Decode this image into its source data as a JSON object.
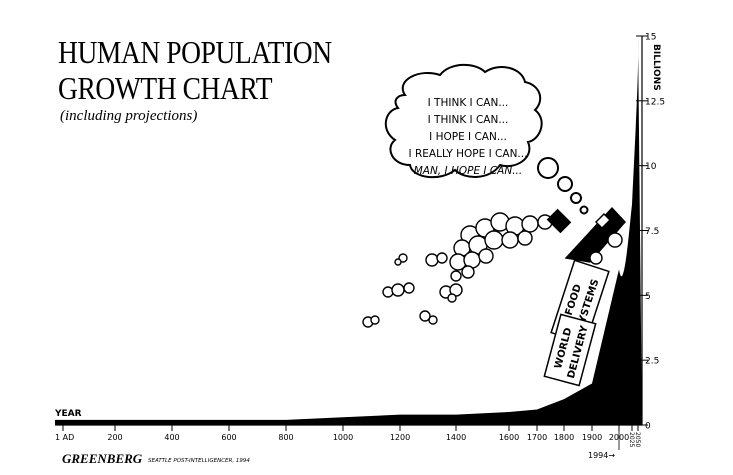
{
  "title_lines": [
    "HUMAN POPULATION",
    "GROWTH CHART"
  ],
  "subtitle": "(including projections)",
  "thought_bubble": [
    "I THINK I CAN...",
    "I THINK I CAN...",
    "I HOPE I CAN...",
    "I REALLY HOPE I CAN...",
    "MAN, I HOPE I CAN..."
  ],
  "cars": {
    "car1": [
      "FOOD",
      "SYSTEMS"
    ],
    "car2": [
      "WORLD",
      "DELIVERY"
    ]
  },
  "y_axis": {
    "label": "BILLIONS",
    "ticks": [
      "15",
      "12.5",
      "10",
      "7.5",
      "5",
      "2.5",
      "0"
    ]
  },
  "x_axis": {
    "label": "YEAR",
    "ticks": [
      "1 AD",
      "200",
      "400",
      "600",
      "800",
      "1000",
      "1200",
      "1400",
      "1600",
      "1700",
      "1800",
      "1900",
      "2000",
      "2025",
      "2050"
    ],
    "marker": "1994→"
  },
  "signature": "GREENBERG",
  "credit": "SEATTLE POST-INTELLIGENCER, 1994",
  "chart_data": {
    "type": "area",
    "x": [
      "1 AD",
      "200",
      "400",
      "600",
      "800",
      "1000",
      "1200",
      "1400",
      "1600",
      "1700",
      "1800",
      "1900",
      "2000"
    ],
    "values": [
      0.2,
      0.2,
      0.2,
      0.2,
      0.2,
      0.3,
      0.4,
      0.4,
      0.5,
      0.6,
      1.0,
      1.6,
      6.0
    ],
    "projections": {
      "2025": 8.5,
      "2050": 15
    },
    "ylabel": "BILLIONS",
    "xlabel": "YEAR",
    "ylim": [
      0,
      15
    ],
    "grid": false
  }
}
